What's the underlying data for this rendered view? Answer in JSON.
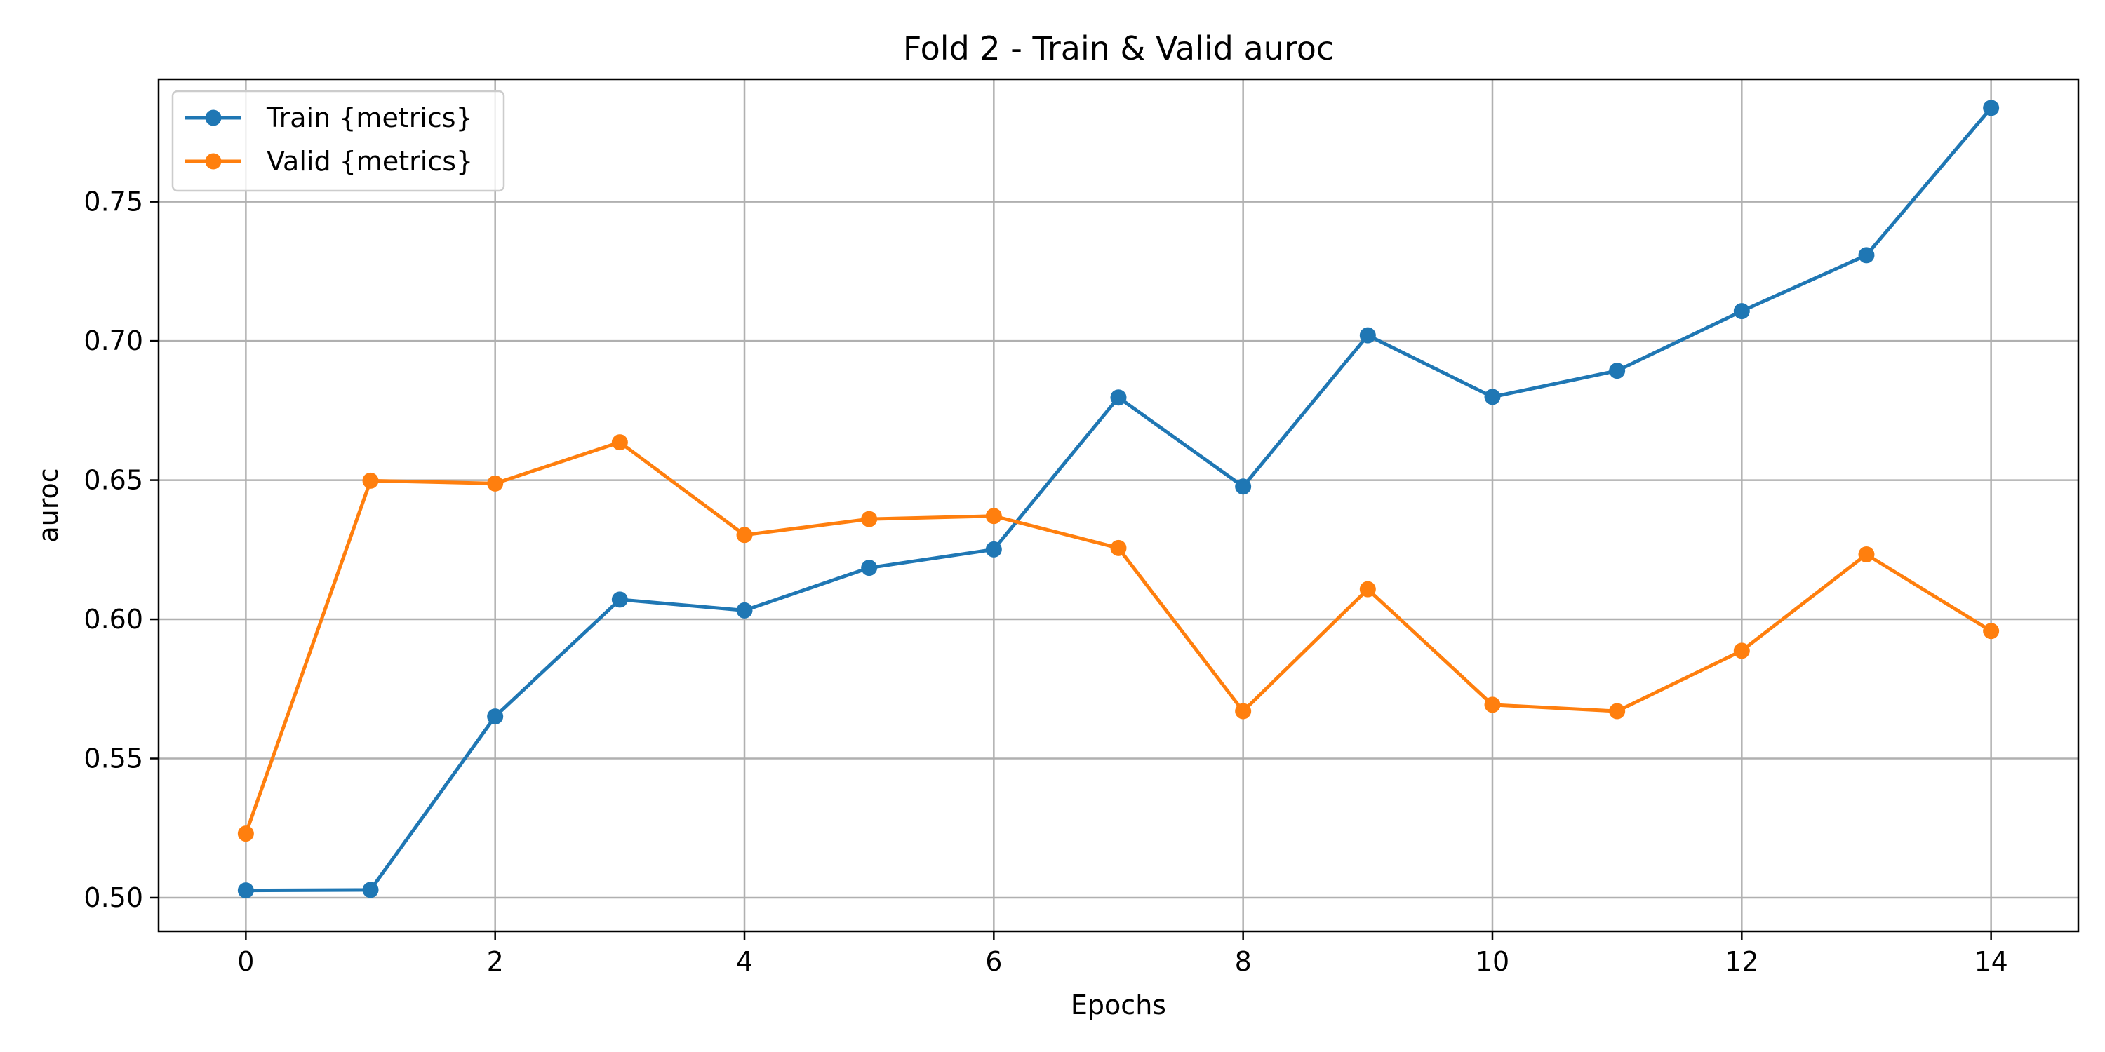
{
  "chart_data": {
    "type": "line",
    "title": "Fold 2 - Train & Valid auroc",
    "xlabel": "Epochs",
    "ylabel": "auroc",
    "x": [
      0,
      1,
      2,
      3,
      4,
      5,
      6,
      7,
      8,
      9,
      10,
      11,
      12,
      13,
      14
    ],
    "xlim": [
      -0.7,
      14.7
    ],
    "ylim": [
      0.4879,
      0.794
    ],
    "xticks": [
      0,
      2,
      4,
      6,
      8,
      10,
      12,
      14
    ],
    "xtick_labels": [
      "0",
      "2",
      "4",
      "6",
      "8",
      "10",
      "12",
      "14"
    ],
    "yticks": [
      0.5,
      0.55,
      0.6,
      0.65,
      0.7,
      0.75
    ],
    "ytick_labels": [
      "0.50",
      "0.55",
      "0.60",
      "0.65",
      "0.70",
      "0.75"
    ],
    "grid": true,
    "legend_position": "top-left",
    "series": [
      {
        "name": "Train {metrics}",
        "color": "#1f77b4",
        "marker": "circle",
        "values": [
          0.5026,
          0.5028,
          0.5651,
          0.6071,
          0.6032,
          0.6185,
          0.6251,
          0.6797,
          0.6477,
          0.702,
          0.6799,
          0.6893,
          0.7107,
          0.7308,
          0.7837
        ]
      },
      {
        "name": "Valid {metrics}",
        "color": "#ff7f0e",
        "marker": "circle",
        "values": [
          0.523,
          0.6498,
          0.6488,
          0.6636,
          0.6303,
          0.636,
          0.6371,
          0.6256,
          0.567,
          0.6108,
          0.5693,
          0.567,
          0.5887,
          0.6233,
          0.5958
        ]
      }
    ]
  }
}
